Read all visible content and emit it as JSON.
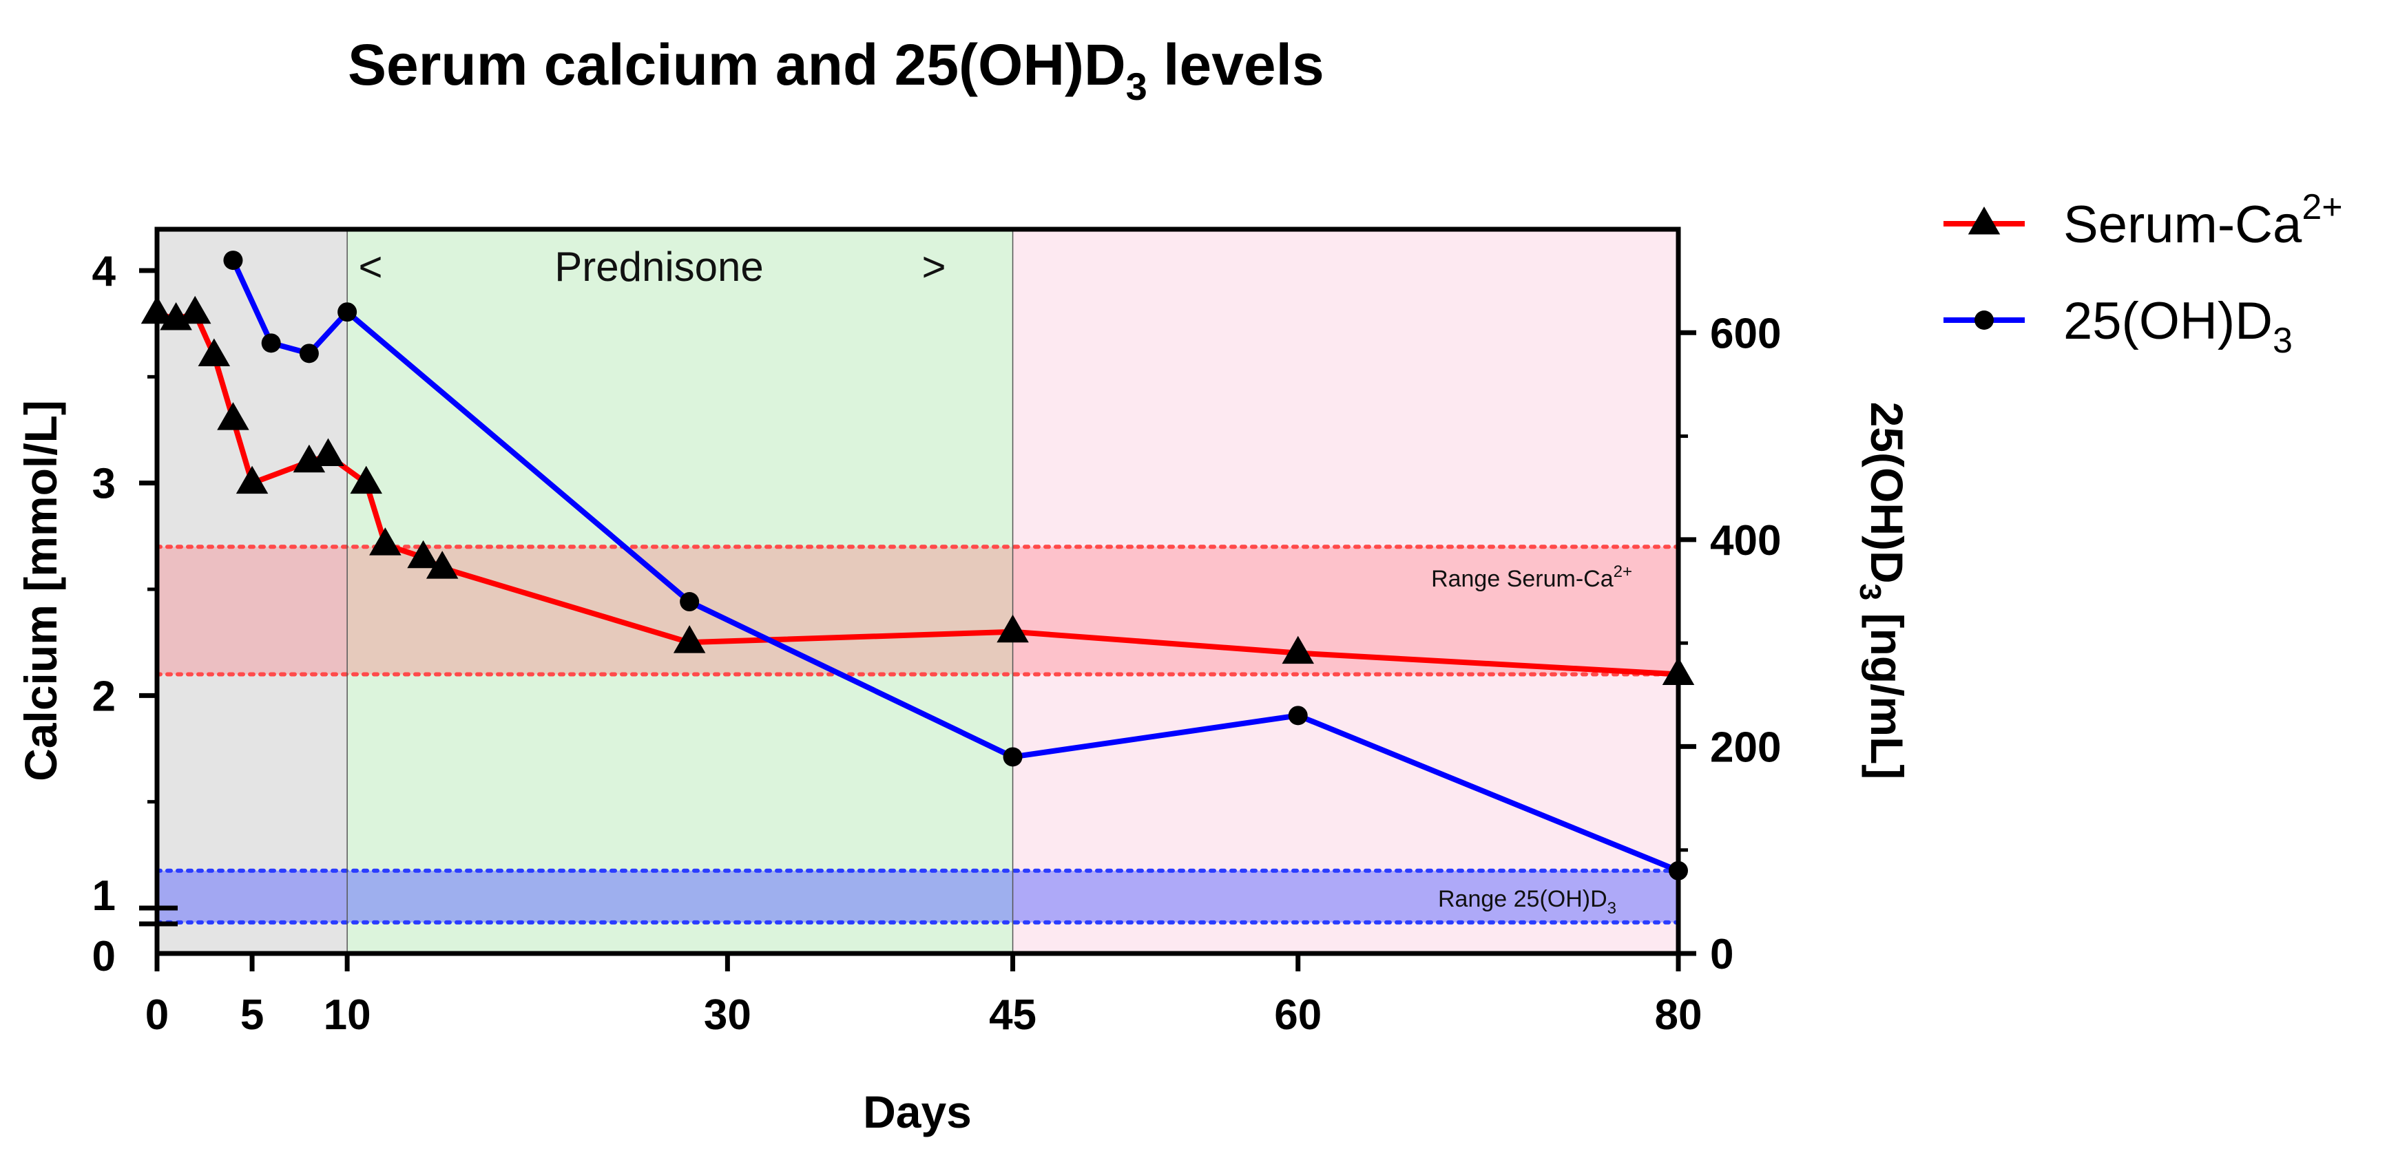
{
  "chart_data": {
    "type": "line",
    "title": {
      "main": "Serum calcium and 25(OH)D",
      "sub": "3",
      "tail": " levels"
    },
    "xlabel": "Days",
    "ylabel_left": "Calcium [mmol/L]",
    "ylabel_right": {
      "main": "25(OH)D",
      "sub": "3",
      "tail": " [ng/mL]"
    },
    "xlim": [
      0,
      80
    ],
    "xticks": [
      0,
      5,
      10,
      30,
      45,
      60,
      80
    ],
    "ylim_left_upper": [
      1,
      4.2
    ],
    "yticks_left": [
      0,
      1,
      2,
      3,
      4
    ],
    "ylim_right": [
      0,
      700
    ],
    "yticks_right": [
      0,
      200,
      400,
      600
    ],
    "phases": [
      {
        "name": "pre",
        "start": 0,
        "end": 10,
        "color": "#e4e4e4"
      },
      {
        "name": "prednisone",
        "start": 10,
        "end": 45,
        "color": "#dcf4dc"
      },
      {
        "name": "post",
        "start": 45,
        "end": 80,
        "color": "#fde9f1"
      }
    ],
    "prednisone_label": {
      "text": "Prednisone",
      "open": "<",
      "close": ">"
    },
    "ranges": [
      {
        "name": "Range Serum-Ca",
        "sup": "2+",
        "axis": "left",
        "low": 2.1,
        "high": 2.7,
        "fill": "rgba(255,105,115,0.30)",
        "line": "#ff4a4a"
      },
      {
        "name": "Range 25(OH)D",
        "sub": "3",
        "axis": "right",
        "low": 30,
        "high": 80,
        "fill": "rgba(95,105,255,0.50)",
        "line": "#2a3cff"
      }
    ],
    "series": [
      {
        "name": "Serum-Ca",
        "sup": "2+",
        "axis": "left",
        "color": "#ff0000",
        "marker": "triangle",
        "x": [
          0,
          1,
          2,
          3,
          4,
          5,
          8,
          9,
          11,
          12,
          14,
          15,
          28,
          45,
          60,
          80
        ],
        "y": [
          3.8,
          3.77,
          3.8,
          3.6,
          3.3,
          3.0,
          3.1,
          3.13,
          3.0,
          2.71,
          2.65,
          2.6,
          2.25,
          2.3,
          2.2,
          2.1
        ]
      },
      {
        "name": "25(OH)D",
        "sub": "3",
        "axis": "right",
        "color": "#0000ff",
        "marker": "circle",
        "x": [
          4,
          6,
          8,
          10,
          28,
          45,
          60,
          80
        ],
        "y": [
          670,
          590,
          580,
          620,
          340,
          190,
          230,
          80
        ]
      }
    ]
  }
}
